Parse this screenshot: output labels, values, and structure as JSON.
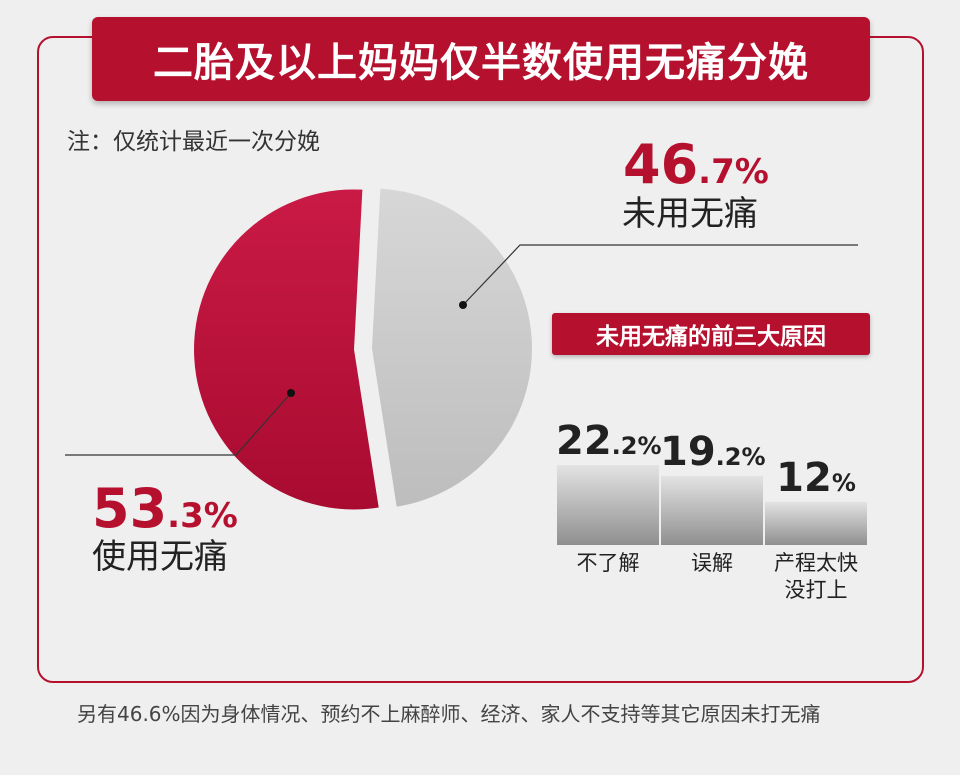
{
  "title": "二胎及以上妈妈仅半数使用无痛分娩",
  "note": "注：仅统计最近一次分娩",
  "colors": {
    "accent": "#b5112f",
    "gray_slice": "#c9c9c9"
  },
  "labels": {
    "not_used_int": "46",
    "not_used_dec": ".7%",
    "not_used": "未用无痛",
    "used_int": "53",
    "used_dec": ".3%",
    "used": "使用无痛"
  },
  "reasons_title": "未用无痛的前三大原因",
  "bar_labels": [
    {
      "int": "22",
      "dec": ".2%"
    },
    {
      "int": "19",
      "dec": ".2%"
    },
    {
      "int": "12",
      "dec": "%"
    }
  ],
  "footnote": "另有46.6%因为身体情况、预约不上麻醉师、经济、家人不支持等其它原因未打无痛",
  "chart_data": [
    {
      "type": "pie",
      "categories": [
        "使用无痛",
        "未用无痛"
      ],
      "values": [
        53.3,
        46.7
      ]
    },
    {
      "type": "bar",
      "title": "未用无痛的前三大原因",
      "categories": [
        "不了解",
        "误解",
        "产程太快没打上"
      ],
      "values": [
        22.2,
        19.2,
        12
      ],
      "ylim": [
        0,
        25
      ]
    }
  ]
}
